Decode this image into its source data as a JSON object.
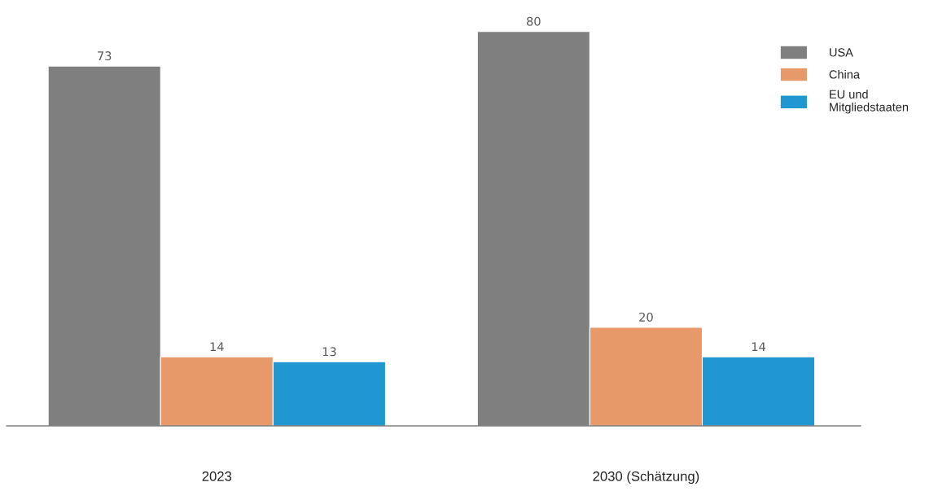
{
  "chart_data": {
    "type": "bar",
    "categories": [
      "2023",
      "2030 (Schätzung)"
    ],
    "series": [
      {
        "name": "USA",
        "color": "#7f7f7f",
        "values": [
          73,
          80
        ]
      },
      {
        "name": "China",
        "color": "#e8996a",
        "values": [
          14,
          20
        ]
      },
      {
        "name": "EU und\nMitgliedstaaten",
        "color": "#2097d0",
        "values": [
          13,
          14
        ]
      }
    ],
    "data_labels": true,
    "legend": "top right",
    "grid": false
  }
}
